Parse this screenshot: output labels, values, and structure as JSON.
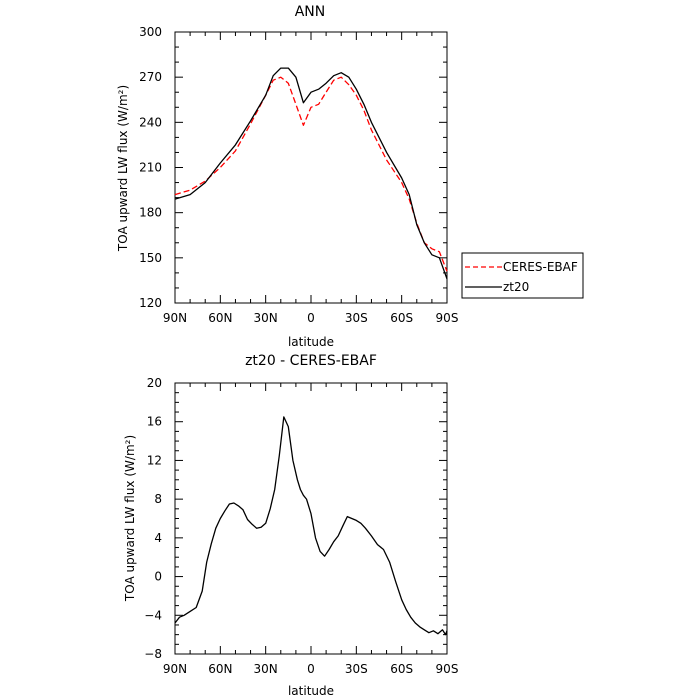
{
  "chart_data": [
    {
      "type": "line",
      "title": "ANN",
      "xlabel": "latitude",
      "ylabel": "TOA upward LW flux (W/m²)",
      "xlim": [
        90,
        -90
      ],
      "ylim": [
        120,
        300
      ],
      "xticks": [
        90,
        60,
        30,
        0,
        -30,
        -60,
        -90
      ],
      "xtick_labels": [
        "90N",
        "60N",
        "30N",
        "0",
        "30S",
        "60S",
        "90S"
      ],
      "yticks": [
        120,
        150,
        180,
        210,
        240,
        270,
        300
      ],
      "ytick_labels": [
        "120",
        "150",
        "180",
        "210",
        "240",
        "270",
        "300"
      ],
      "legend_position": "right, outside the plot",
      "series": [
        {
          "name": "CERES-EBAF",
          "color": "#ff0000",
          "dash": "dashed",
          "x": [
            90,
            80,
            70,
            60,
            50,
            40,
            30,
            25,
            20,
            15,
            10,
            5,
            0,
            -5,
            -10,
            -15,
            -20,
            -25,
            -30,
            -35,
            -40,
            -50,
            -60,
            -65,
            -70,
            -75,
            -80,
            -85,
            -90
          ],
          "y": [
            192,
            195,
            201,
            210,
            221,
            239,
            258,
            268,
            270,
            266,
            252,
            238,
            250,
            252,
            260,
            268,
            270,
            265,
            258,
            248,
            235,
            215,
            200,
            189,
            173,
            160,
            156,
            154,
            141
          ]
        },
        {
          "name": "zt20",
          "color": "#000000",
          "dash": "solid",
          "x": [
            90,
            80,
            70,
            60,
            50,
            40,
            30,
            25,
            20,
            15,
            10,
            5,
            0,
            -5,
            -10,
            -15,
            -20,
            -25,
            -30,
            -35,
            -40,
            -50,
            -60,
            -65,
            -70,
            -75,
            -80,
            -85,
            -90
          ],
          "y": [
            189,
            192,
            200,
            213,
            225,
            241,
            258,
            271,
            276,
            276,
            270,
            253,
            260,
            262,
            266,
            271,
            273,
            270,
            262,
            252,
            240,
            220,
            203,
            192,
            172,
            160,
            152,
            150,
            136
          ]
        }
      ]
    },
    {
      "type": "line",
      "title": "zt20 - CERES-EBAF",
      "xlabel": "latitude",
      "ylabel": "TOA upward LW flux (W/m²)",
      "xlim": [
        90,
        -90
      ],
      "ylim": [
        -8,
        20
      ],
      "xticks": [
        90,
        60,
        30,
        0,
        -30,
        -60,
        -90
      ],
      "xtick_labels": [
        "90N",
        "60N",
        "30N",
        "0",
        "30S",
        "60S",
        "90S"
      ],
      "yticks": [
        -8,
        -4,
        0,
        4,
        8,
        12,
        16,
        20
      ],
      "ytick_labels": [
        "−8",
        "−4",
        "0",
        "4",
        "8",
        "12",
        "16",
        "20"
      ],
      "series": [
        {
          "color": "#000000",
          "x": [
            90,
            87,
            84,
            80,
            76,
            72,
            69,
            66,
            63,
            60,
            57,
            54,
            51,
            48,
            45,
            42,
            39,
            36,
            33,
            30,
            27,
            24,
            21,
            18,
            15,
            12,
            9,
            7,
            5,
            3,
            0,
            -3,
            -6,
            -9,
            -12,
            -15,
            -18,
            -21,
            -24,
            -27,
            -30,
            -33,
            -36,
            -40,
            -44,
            -48,
            -52,
            -56,
            -60,
            -63,
            -66,
            -69,
            -72,
            -75,
            -78,
            -81,
            -84,
            -87,
            -89,
            -90
          ],
          "y": [
            -4.8,
            -4.2,
            -4.0,
            -3.6,
            -3.2,
            -1.5,
            1.5,
            3.4,
            5.0,
            6.0,
            6.8,
            7.5,
            7.6,
            7.3,
            6.9,
            5.9,
            5.4,
            5.0,
            5.1,
            5.5,
            7.0,
            9.0,
            12.5,
            16.5,
            15.5,
            12.0,
            10.0,
            9.0,
            8.4,
            8.0,
            6.5,
            4.0,
            2.6,
            2.1,
            2.8,
            3.6,
            4.2,
            5.2,
            6.2,
            6.0,
            5.8,
            5.5,
            5.0,
            4.2,
            3.3,
            2.8,
            1.5,
            -0.5,
            -2.4,
            -3.4,
            -4.2,
            -4.8,
            -5.2,
            -5.5,
            -5.8,
            -5.6,
            -5.9,
            -5.5,
            -6.0,
            -5.6
          ]
        }
      ]
    }
  ]
}
